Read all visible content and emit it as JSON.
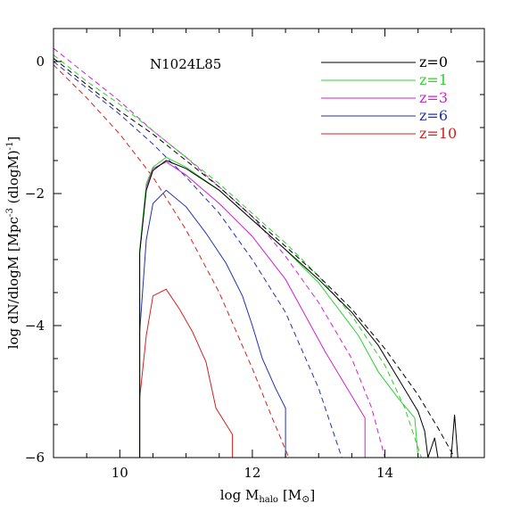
{
  "chart_data": {
    "type": "line",
    "title": "N1024L85",
    "xlabel": "log M",
    "xlabel_sub": "halo",
    "xlabel_unit": "[M",
    "xlabel_unit_sub": "⊙",
    "xlabel_unit_close": "]",
    "ylabel": "log dN/dlogM [Mpc",
    "ylabel_sup": "-3",
    "ylabel_mid": " (dlogM)",
    "ylabel_sup2": "-1",
    "ylabel_close": "]",
    "xlim": [
      9.0,
      15.5
    ],
    "ylim": [
      -6.0,
      0.5
    ],
    "x_ticks": [
      10,
      12,
      14
    ],
    "y_ticks": [
      0,
      -2,
      -4,
      -6
    ],
    "x_tick_labels": [
      "10",
      "12",
      "14"
    ],
    "y_tick_labels": [
      "0",
      "−2",
      "−4",
      "−6"
    ],
    "grid": false,
    "legend_position": "top-right",
    "series": [
      {
        "name": "z=10",
        "color": "#d62020",
        "simulated": [
          [
            10.3,
            -6.0
          ],
          [
            10.3,
            -5.1
          ],
          [
            10.4,
            -4.15
          ],
          [
            10.5,
            -3.55
          ],
          [
            10.7,
            -3.45
          ],
          [
            10.9,
            -3.75
          ],
          [
            11.1,
            -4.1
          ],
          [
            11.3,
            -4.55
          ],
          [
            11.45,
            -5.25
          ],
          [
            11.7,
            -5.65
          ],
          [
            11.7,
            -6.0
          ]
        ],
        "analytic": [
          [
            9.0,
            -0.05
          ],
          [
            9.5,
            -0.55
          ],
          [
            10.0,
            -1.1
          ],
          [
            10.5,
            -1.75
          ],
          [
            11.0,
            -2.55
          ],
          [
            11.5,
            -3.5
          ],
          [
            12.0,
            -4.65
          ],
          [
            12.3,
            -5.4
          ],
          [
            12.55,
            -6.0
          ]
        ]
      },
      {
        "name": "z=6",
        "color": "#2030b0",
        "simulated": [
          [
            10.3,
            -6.0
          ],
          [
            10.3,
            -4.1
          ],
          [
            10.4,
            -2.7
          ],
          [
            10.5,
            -2.15
          ],
          [
            10.7,
            -1.95
          ],
          [
            11.0,
            -2.2
          ],
          [
            11.3,
            -2.6
          ],
          [
            11.6,
            -3.05
          ],
          [
            11.85,
            -3.55
          ],
          [
            12.0,
            -4.0
          ],
          [
            12.15,
            -4.5
          ],
          [
            12.35,
            -4.95
          ],
          [
            12.5,
            -5.25
          ],
          [
            12.5,
            -6.0
          ]
        ],
        "analytic": [
          [
            9.0,
            0.0
          ],
          [
            9.5,
            -0.4
          ],
          [
            10.0,
            -0.8
          ],
          [
            10.5,
            -1.25
          ],
          [
            11.0,
            -1.75
          ],
          [
            11.5,
            -2.3
          ],
          [
            12.0,
            -3.0
          ],
          [
            12.5,
            -3.8
          ],
          [
            13.0,
            -4.95
          ],
          [
            13.35,
            -6.0
          ]
        ]
      },
      {
        "name": "z=3",
        "color": "#d020d0",
        "simulated": [
          [
            10.3,
            -6.0
          ],
          [
            10.3,
            -2.9
          ],
          [
            10.4,
            -1.9
          ],
          [
            10.5,
            -1.62
          ],
          [
            10.7,
            -1.52
          ],
          [
            11.0,
            -1.72
          ],
          [
            11.5,
            -2.15
          ],
          [
            12.0,
            -2.65
          ],
          [
            12.5,
            -3.3
          ],
          [
            12.8,
            -3.85
          ],
          [
            13.1,
            -4.4
          ],
          [
            13.4,
            -4.9
          ],
          [
            13.7,
            -5.4
          ],
          [
            13.7,
            -6.0
          ]
        ],
        "analytic": [
          [
            9.0,
            0.2
          ],
          [
            9.5,
            -0.2
          ],
          [
            10.0,
            -0.6
          ],
          [
            10.5,
            -1.05
          ],
          [
            11.0,
            -1.45
          ],
          [
            11.5,
            -1.9
          ],
          [
            12.0,
            -2.35
          ],
          [
            12.5,
            -2.95
          ],
          [
            13.0,
            -3.65
          ],
          [
            13.5,
            -4.5
          ],
          [
            13.8,
            -5.25
          ],
          [
            14.0,
            -6.0
          ]
        ]
      },
      {
        "name": "z=1",
        "color": "#30d030",
        "simulated": [
          [
            10.3,
            -6.0
          ],
          [
            10.3,
            -2.85
          ],
          [
            10.4,
            -1.85
          ],
          [
            10.5,
            -1.6
          ],
          [
            10.7,
            -1.45
          ],
          [
            11.0,
            -1.6
          ],
          [
            11.5,
            -1.95
          ],
          [
            12.0,
            -2.4
          ],
          [
            12.5,
            -2.85
          ],
          [
            13.0,
            -3.35
          ],
          [
            13.3,
            -3.75
          ],
          [
            13.6,
            -4.15
          ],
          [
            13.9,
            -4.7
          ],
          [
            14.2,
            -5.1
          ],
          [
            14.45,
            -5.4
          ],
          [
            14.5,
            -6.0
          ]
        ],
        "analytic": [
          [
            9.0,
            0.1
          ],
          [
            9.5,
            -0.3
          ],
          [
            10.0,
            -0.65
          ],
          [
            10.5,
            -1.05
          ],
          [
            11.0,
            -1.45
          ],
          [
            11.5,
            -1.85
          ],
          [
            12.0,
            -2.3
          ],
          [
            12.5,
            -2.75
          ],
          [
            13.0,
            -3.25
          ],
          [
            13.5,
            -3.85
          ],
          [
            14.0,
            -4.6
          ],
          [
            14.3,
            -5.25
          ],
          [
            14.55,
            -6.0
          ]
        ]
      },
      {
        "name": "z=0",
        "color": "#000000",
        "simulated": [
          [
            10.3,
            -6.0
          ],
          [
            10.3,
            -2.9
          ],
          [
            10.4,
            -1.95
          ],
          [
            10.5,
            -1.65
          ],
          [
            10.7,
            -1.5
          ],
          [
            11.0,
            -1.62
          ],
          [
            11.5,
            -1.95
          ],
          [
            12.0,
            -2.4
          ],
          [
            12.5,
            -2.85
          ],
          [
            13.0,
            -3.3
          ],
          [
            13.5,
            -3.8
          ],
          [
            13.9,
            -4.3
          ],
          [
            14.2,
            -4.8
          ],
          [
            14.5,
            -5.3
          ],
          [
            14.6,
            -5.6
          ],
          [
            14.65,
            -6.0
          ],
          [
            14.75,
            -5.7
          ],
          [
            14.8,
            -6.0
          ],
          [
            15.0,
            -6.0
          ],
          [
            15.05,
            -5.35
          ],
          [
            15.1,
            -6.0
          ]
        ],
        "analytic": [
          [
            9.0,
            0.05
          ],
          [
            9.5,
            -0.35
          ],
          [
            10.0,
            -0.75
          ],
          [
            10.5,
            -1.1
          ],
          [
            11.0,
            -1.5
          ],
          [
            11.5,
            -1.9
          ],
          [
            12.0,
            -2.35
          ],
          [
            12.5,
            -2.8
          ],
          [
            13.0,
            -3.25
          ],
          [
            13.5,
            -3.75
          ],
          [
            14.0,
            -4.35
          ],
          [
            14.5,
            -5.05
          ],
          [
            14.8,
            -5.55
          ],
          [
            15.05,
            -6.0
          ]
        ]
      }
    ]
  }
}
